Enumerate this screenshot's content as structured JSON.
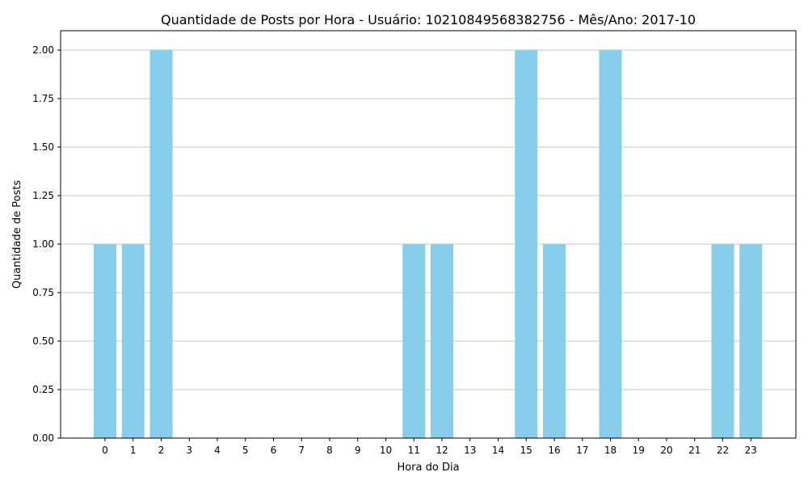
{
  "chart_data": {
    "type": "bar",
    "title": "Quantidade de Posts por Hora - Usuário: 10210849568382756 - Mês/Ano: 2017-10",
    "xlabel": "Hora do Dia",
    "ylabel": "Quantidade de Posts",
    "categories": [
      "0",
      "1",
      "2",
      "3",
      "4",
      "5",
      "6",
      "7",
      "8",
      "9",
      "10",
      "11",
      "12",
      "13",
      "14",
      "15",
      "16",
      "17",
      "18",
      "19",
      "20",
      "21",
      "22",
      "23"
    ],
    "values": [
      1,
      1,
      2,
      0,
      0,
      0,
      0,
      0,
      0,
      0,
      0,
      1,
      1,
      0,
      0,
      2,
      1,
      0,
      2,
      0,
      0,
      0,
      1,
      1
    ],
    "ylim": [
      0,
      2.1
    ],
    "yticks": [
      "0.00",
      "0.25",
      "0.50",
      "0.75",
      "1.00",
      "1.25",
      "1.50",
      "1.75",
      "2.00"
    ],
    "grid": "y",
    "bar_color": "#87CEEB",
    "grid_color": "#b0b0b0"
  }
}
